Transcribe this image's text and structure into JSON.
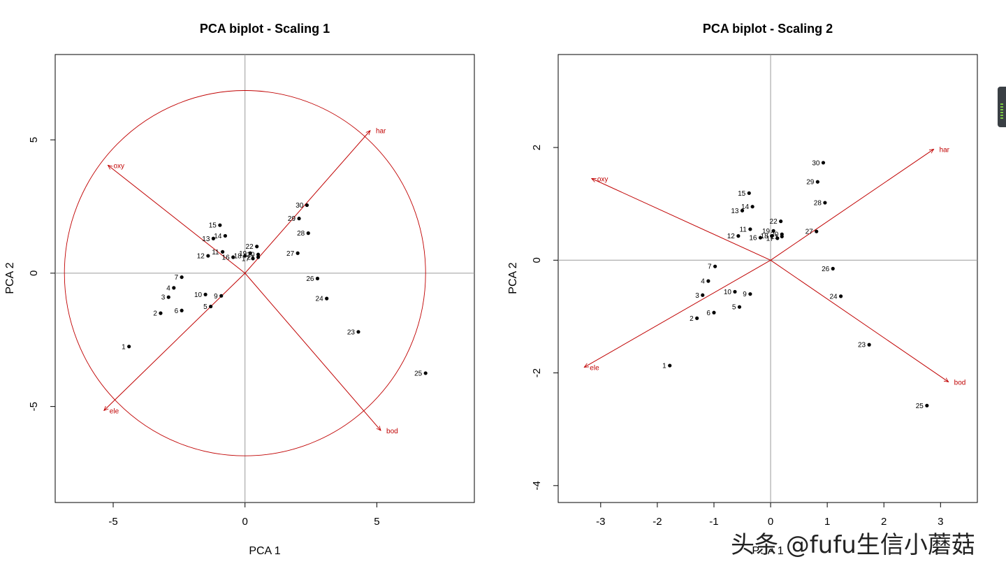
{
  "chart_data": [
    {
      "type": "scatter",
      "title": "PCA biplot - Scaling 1",
      "xlabel": "PCA  1",
      "ylabel": "PCA  2",
      "xlim": [
        -7.2,
        8.7
      ],
      "ylim": [
        -8.6,
        8.2
      ],
      "xticks": [
        -5,
        0,
        5
      ],
      "yticks": [
        -5,
        0,
        5
      ],
      "circle_radius": 6.85,
      "points": [
        {
          "label": "1",
          "x": -4.4,
          "y": -2.75
        },
        {
          "label": "2",
          "x": -3.2,
          "y": -1.5
        },
        {
          "label": "3",
          "x": -2.9,
          "y": -0.9
        },
        {
          "label": "4",
          "x": -2.7,
          "y": -0.55
        },
        {
          "label": "5",
          "x": -1.3,
          "y": -1.25
        },
        {
          "label": "6",
          "x": -2.4,
          "y": -1.4
        },
        {
          "label": "7",
          "x": -2.4,
          "y": -0.15
        },
        {
          "label": "9",
          "x": -0.9,
          "y": -0.85
        },
        {
          "label": "10",
          "x": -1.5,
          "y": -0.8
        },
        {
          "label": "11",
          "x": -0.85,
          "y": 0.8
        },
        {
          "label": "12",
          "x": -1.4,
          "y": 0.65
        },
        {
          "label": "13",
          "x": -1.2,
          "y": 1.3
        },
        {
          "label": "14",
          "x": -0.75,
          "y": 1.4
        },
        {
          "label": "15",
          "x": -0.95,
          "y": 1.8
        },
        {
          "label": "16",
          "x": -0.45,
          "y": 0.6
        },
        {
          "label": "17",
          "x": 0.3,
          "y": 0.55
        },
        {
          "label": "18",
          "x": 0.0,
          "y": 0.65
        },
        {
          "label": "19",
          "x": 0.2,
          "y": 0.75
        },
        {
          "label": "20",
          "x": 0.5,
          "y": 0.7
        },
        {
          "label": "21",
          "x": 0.5,
          "y": 0.6
        },
        {
          "label": "22",
          "x": 0.45,
          "y": 1.0
        },
        {
          "label": "23",
          "x": 4.3,
          "y": -2.2
        },
        {
          "label": "24",
          "x": 3.1,
          "y": -0.95
        },
        {
          "label": "25",
          "x": 6.85,
          "y": -3.75
        },
        {
          "label": "26",
          "x": 2.75,
          "y": -0.2
        },
        {
          "label": "27",
          "x": 2.0,
          "y": 0.75
        },
        {
          "label": "28",
          "x": 2.4,
          "y": 1.5
        },
        {
          "label": "29",
          "x": 2.05,
          "y": 2.05
        },
        {
          "label": "30",
          "x": 2.35,
          "y": 2.55
        }
      ],
      "arrows": [
        {
          "label": "har",
          "x": 4.75,
          "y": 5.35
        },
        {
          "label": "oxy",
          "x": -5.2,
          "y": 4.05
        },
        {
          "label": "ele",
          "x": -5.35,
          "y": -5.15
        },
        {
          "label": "bod",
          "x": 5.15,
          "y": -5.9
        }
      ]
    },
    {
      "type": "scatter",
      "title": "PCA biplot - Scaling 2",
      "xlabel": "PCA  1",
      "ylabel": "PCA  2",
      "xlim": [
        -3.75,
        3.65
      ],
      "ylim": [
        -4.3,
        3.65
      ],
      "xticks": [
        -3,
        -2,
        -1,
        0,
        1,
        2,
        3
      ],
      "yticks": [
        -4,
        -2,
        0,
        2
      ],
      "points": [
        {
          "label": "1",
          "x": -1.78,
          "y": -1.87
        },
        {
          "label": "2",
          "x": -1.3,
          "y": -1.03
        },
        {
          "label": "3",
          "x": -1.2,
          "y": -0.62
        },
        {
          "label": "4",
          "x": -1.1,
          "y": -0.37
        },
        {
          "label": "5",
          "x": -0.55,
          "y": -0.83
        },
        {
          "label": "6",
          "x": -1.0,
          "y": -0.93
        },
        {
          "label": "7",
          "x": -0.98,
          "y": -0.11
        },
        {
          "label": "9",
          "x": -0.36,
          "y": -0.6
        },
        {
          "label": "10",
          "x": -0.63,
          "y": -0.56
        },
        {
          "label": "11",
          "x": -0.36,
          "y": 0.55
        },
        {
          "label": "12",
          "x": -0.57,
          "y": 0.43
        },
        {
          "label": "13",
          "x": -0.5,
          "y": 0.88
        },
        {
          "label": "14",
          "x": -0.32,
          "y": 0.95
        },
        {
          "label": "15",
          "x": -0.38,
          "y": 1.19
        },
        {
          "label": "16",
          "x": -0.18,
          "y": 0.4
        },
        {
          "label": "17",
          "x": 0.12,
          "y": 0.39
        },
        {
          "label": "18",
          "x": 0.02,
          "y": 0.43
        },
        {
          "label": "19",
          "x": 0.05,
          "y": 0.52
        },
        {
          "label": "20",
          "x": 0.2,
          "y": 0.46
        },
        {
          "label": "21",
          "x": 0.2,
          "y": 0.42
        },
        {
          "label": "22",
          "x": 0.18,
          "y": 0.69
        },
        {
          "label": "23",
          "x": 1.74,
          "y": -1.5
        },
        {
          "label": "24",
          "x": 1.24,
          "y": -0.64
        },
        {
          "label": "25",
          "x": 2.76,
          "y": -2.58
        },
        {
          "label": "26",
          "x": 1.1,
          "y": -0.15
        },
        {
          "label": "27",
          "x": 0.81,
          "y": 0.51
        },
        {
          "label": "28",
          "x": 0.96,
          "y": 1.02
        },
        {
          "label": "29",
          "x": 0.83,
          "y": 1.39
        },
        {
          "label": "30",
          "x": 0.93,
          "y": 1.73
        }
      ],
      "arrows": [
        {
          "label": "har",
          "x": 2.88,
          "y": 1.97
        },
        {
          "label": "oxy",
          "x": -3.16,
          "y": 1.45
        },
        {
          "label": "ele",
          "x": -3.29,
          "y": -1.9
        },
        {
          "label": "bod",
          "x": 3.14,
          "y": -2.16
        }
      ]
    }
  ],
  "watermark": "头条 @fufu生信小蘑菇"
}
